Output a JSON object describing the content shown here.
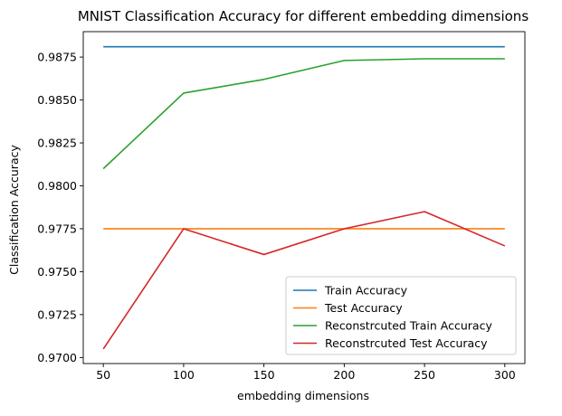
{
  "chart_data": {
    "type": "line",
    "title": "MNIST Classification Accuracy for different embedding dimensions",
    "xlabel": "embedding dimensions",
    "ylabel": "Classification Accuracy",
    "x": [
      50,
      100,
      150,
      200,
      250,
      300
    ],
    "xlim": [
      37.5,
      312.5
    ],
    "ylim": [
      0.96965,
      0.98898
    ],
    "xticks": [
      50,
      100,
      150,
      200,
      250,
      300
    ],
    "xtick_labels": [
      "50",
      "100",
      "150",
      "200",
      "250",
      "300"
    ],
    "yticks": [
      0.97,
      0.9725,
      0.975,
      0.9775,
      0.98,
      0.9825,
      0.985,
      0.9875
    ],
    "ytick_labels": [
      "0.9700",
      "0.9725",
      "0.9750",
      "0.9775",
      "0.9800",
      "0.9825",
      "0.9850",
      "0.9875"
    ],
    "grid": false,
    "legend_position": "lower-right",
    "series": [
      {
        "name": "Train Accuracy",
        "color": "#1f77b4",
        "values": [
          0.9881,
          0.9881,
          0.9881,
          0.9881,
          0.9881,
          0.9881
        ]
      },
      {
        "name": "Test Accuracy",
        "color": "#ff7f0e",
        "values": [
          0.9775,
          0.9775,
          0.9775,
          0.9775,
          0.9775,
          0.9775
        ]
      },
      {
        "name": "Reconstrcuted Train Accuracy",
        "color": "#2ca02c",
        "values": [
          0.981,
          0.9854,
          0.9862,
          0.9873,
          0.9874,
          0.9874
        ]
      },
      {
        "name": "Reconstrcuted Test Accuracy",
        "color": "#d62728",
        "values": [
          0.9705,
          0.9775,
          0.976,
          0.9775,
          0.9785,
          0.9765
        ]
      }
    ]
  }
}
